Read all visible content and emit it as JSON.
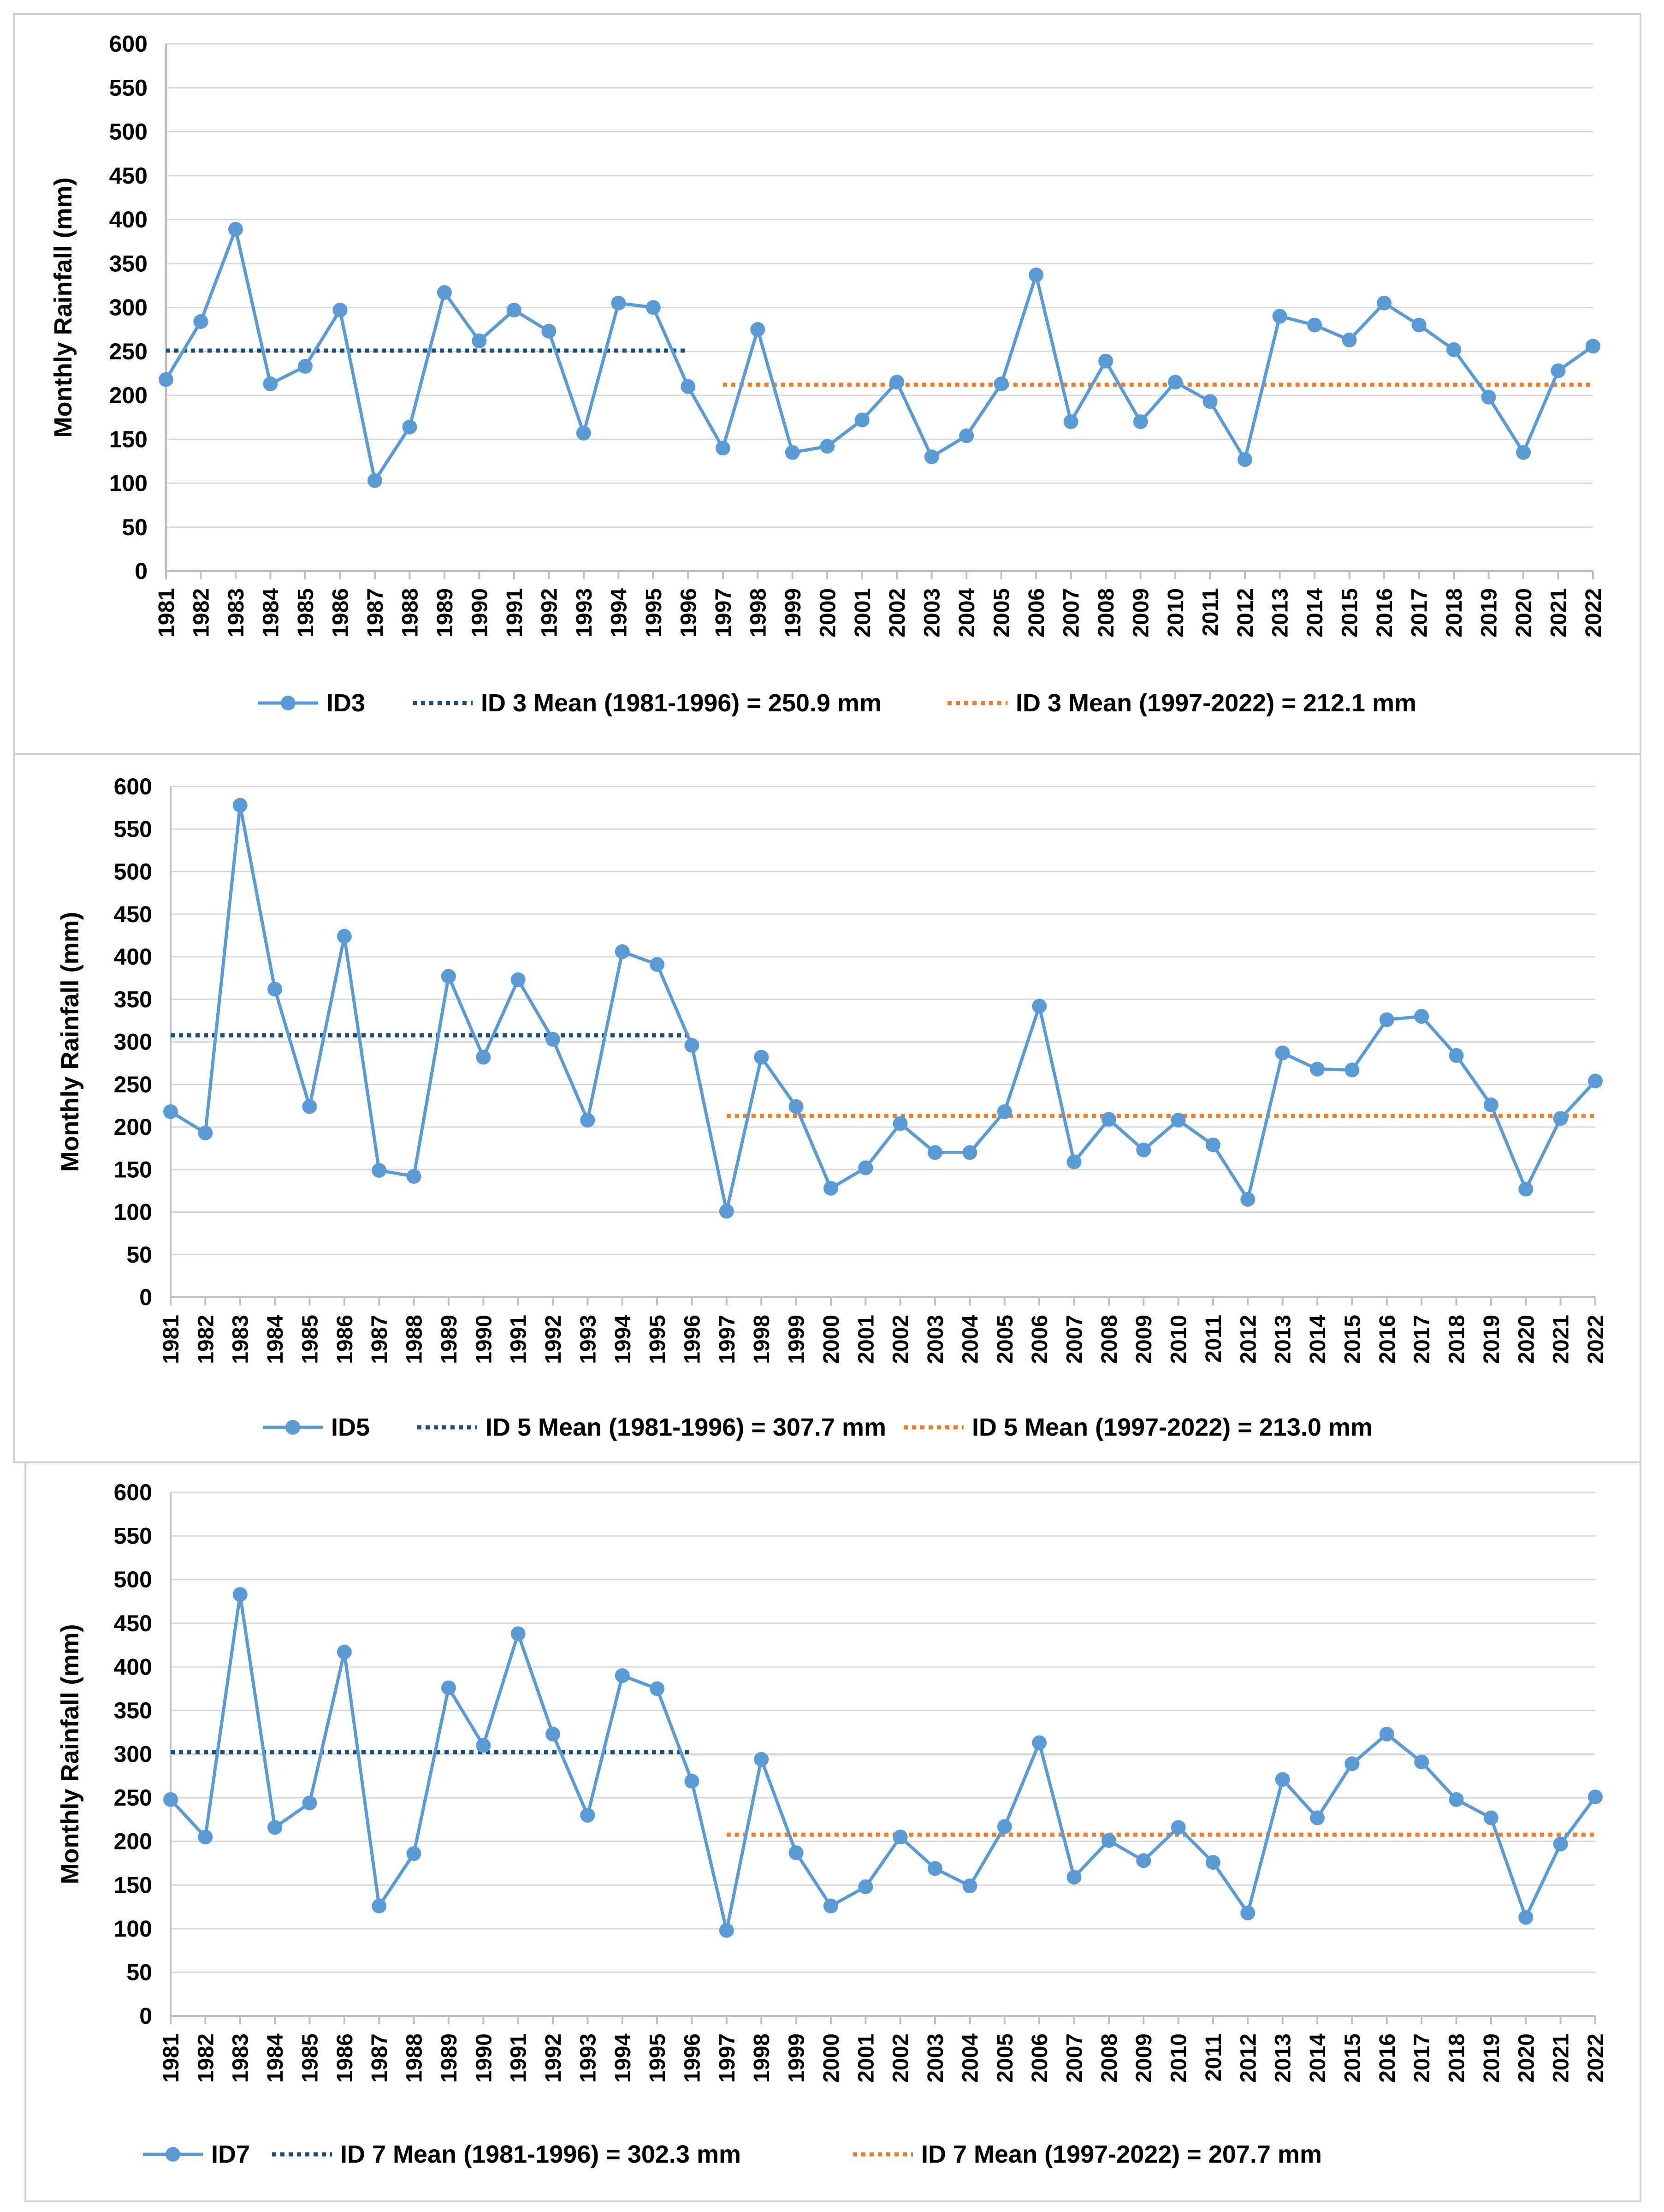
{
  "chart_data": [
    {
      "type": "line",
      "title": "",
      "xlabel": "",
      "ylabel": "Monthly Rainfall (mm)",
      "ylim": [
        0,
        600
      ],
      "ytick_step": 50,
      "grid": true,
      "legend_position": "bottom",
      "categories": [
        "1981",
        "1982",
        "1983",
        "1984",
        "1985",
        "1986",
        "1987",
        "1988",
        "1989",
        "1990",
        "1991",
        "1992",
        "1993",
        "1994",
        "1995",
        "1996",
        "1997",
        "1998",
        "1999",
        "2000",
        "2001",
        "2002",
        "2003",
        "2004",
        "2005",
        "2006",
        "2007",
        "2008",
        "2009",
        "2010",
        "2011",
        "2012",
        "2013",
        "2014",
        "2015",
        "2016",
        "2017",
        "2018",
        "2019",
        "2020",
        "2021",
        "2022"
      ],
      "series": [
        {
          "name": "ID3",
          "kind": "line-marker",
          "color": "#5b9bd5",
          "values": [
            218,
            284,
            389,
            213,
            233,
            297,
            103,
            164,
            317,
            262,
            297,
            273,
            157,
            305,
            300,
            210,
            140,
            275,
            135,
            142,
            172,
            215,
            130,
            154,
            213,
            337,
            170,
            239,
            170,
            215,
            193,
            127,
            290,
            280,
            263,
            305,
            280,
            252,
            198,
            135,
            228,
            256
          ]
        },
        {
          "name": "ID 3 Mean (1981-1996) = 250.9 mm",
          "kind": "mean",
          "color": "#1f4e79",
          "value": 250.9,
          "range": [
            "1981",
            "1996"
          ]
        },
        {
          "name": "ID 3 Mean (1997-2022) = 212.1 mm",
          "kind": "mean",
          "color": "#ed7d31",
          "value": 212.1,
          "range": [
            "1997",
            "2022"
          ]
        }
      ]
    },
    {
      "type": "line",
      "title": "",
      "xlabel": "",
      "ylabel": "Monthly Rainfall (mm)",
      "ylim": [
        0,
        600
      ],
      "ytick_step": 50,
      "grid": true,
      "legend_position": "bottom",
      "categories": [
        "1981",
        "1982",
        "1983",
        "1984",
        "1985",
        "1986",
        "1987",
        "1988",
        "1989",
        "1990",
        "1991",
        "1992",
        "1993",
        "1994",
        "1995",
        "1996",
        "1997",
        "1998",
        "1999",
        "2000",
        "2001",
        "2002",
        "2003",
        "2004",
        "2005",
        "2006",
        "2007",
        "2008",
        "2009",
        "2010",
        "2011",
        "2012",
        "2013",
        "2014",
        "2015",
        "2016",
        "2017",
        "2018",
        "2019",
        "2020",
        "2021",
        "2022"
      ],
      "series": [
        {
          "name": "ID5",
          "kind": "line-marker",
          "color": "#5b9bd5",
          "values": [
            218,
            193,
            578,
            362,
            224,
            424,
            149,
            142,
            377,
            282,
            373,
            303,
            208,
            406,
            391,
            296,
            101,
            282,
            224,
            128,
            152,
            204,
            170,
            170,
            218,
            342,
            159,
            209,
            173,
            208,
            179,
            115,
            287,
            268,
            267,
            326,
            330,
            284,
            226,
            127,
            210,
            254
          ]
        },
        {
          "name": "ID 5 Mean (1981-1996) = 307.7 mm",
          "kind": "mean",
          "color": "#1f4e79",
          "value": 307.7,
          "range": [
            "1981",
            "1996"
          ]
        },
        {
          "name": "ID 5 Mean (1997-2022) = 213.0 mm",
          "kind": "mean",
          "color": "#ed7d31",
          "value": 213.0,
          "range": [
            "1997",
            "2022"
          ]
        }
      ]
    },
    {
      "type": "line",
      "title": "",
      "xlabel": "",
      "ylabel": "Monthly Rainfall (mm)",
      "ylim": [
        0,
        600
      ],
      "ytick_step": 50,
      "grid": true,
      "legend_position": "bottom",
      "categories": [
        "1981",
        "1982",
        "1983",
        "1984",
        "1985",
        "1986",
        "1987",
        "1988",
        "1989",
        "1990",
        "1991",
        "1992",
        "1993",
        "1994",
        "1995",
        "1996",
        "1997",
        "1998",
        "1999",
        "2000",
        "2001",
        "2002",
        "2003",
        "2004",
        "2005",
        "2006",
        "2007",
        "2008",
        "2009",
        "2010",
        "2011",
        "2012",
        "2013",
        "2014",
        "2015",
        "2016",
        "2017",
        "2018",
        "2019",
        "2020",
        "2021",
        "2022"
      ],
      "series": [
        {
          "name": "ID7",
          "kind": "line-marker",
          "color": "#5b9bd5",
          "values": [
            248,
            205,
            483,
            216,
            244,
            417,
            126,
            186,
            376,
            310,
            438,
            323,
            230,
            390,
            375,
            269,
            98,
            294,
            187,
            126,
            148,
            205,
            169,
            149,
            217,
            313,
            159,
            201,
            178,
            216,
            176,
            118,
            271,
            227,
            289,
            323,
            291,
            248,
            227,
            113,
            197,
            251
          ]
        },
        {
          "name": "ID 7 Mean (1981-1996) = 302.3 mm",
          "kind": "mean",
          "color": "#1f4e79",
          "value": 302.3,
          "range": [
            "1981",
            "1996"
          ]
        },
        {
          "name": "ID 7 Mean (1997-2022) = 207.7 mm",
          "kind": "mean",
          "color": "#ed7d31",
          "value": 207.7,
          "range": [
            "1997",
            "2022"
          ]
        }
      ]
    }
  ]
}
